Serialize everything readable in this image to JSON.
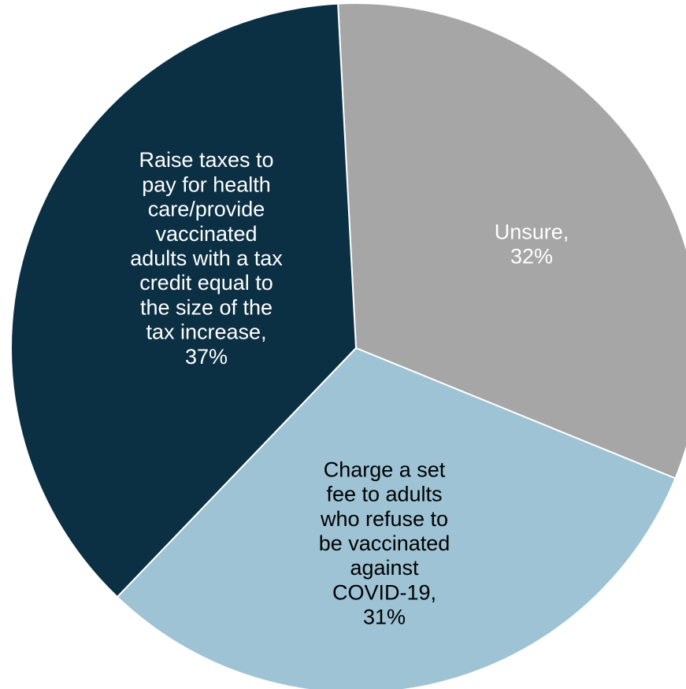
{
  "chart_data": {
    "type": "pie",
    "title": "",
    "start_angle_deg": -3,
    "slices": [
      {
        "name": "Unsure",
        "value": 32,
        "label_lines": [
          "Unsure,",
          "32%"
        ],
        "color": "#A6A6A6",
        "label_color": "#FFFFFF"
      },
      {
        "name": "Charge a set fee to adults who refuse to be vaccinated against COVID-19",
        "value": 31,
        "label_lines": [
          "Charge a set",
          "fee to adults",
          "who refuse to",
          "be vaccinated",
          "against",
          "COVID-19,",
          "31%"
        ],
        "color": "#9DC3D4",
        "label_color": "#000000"
      },
      {
        "name": "Raise taxes to pay for health care/provide vaccinated adults with a tax credit equal to the size of the tax increase",
        "value": 37,
        "label_lines": [
          "Raise taxes to",
          "pay for health",
          "care/provide",
          "vaccinated",
          "adults with a tax",
          "credit equal to",
          "the size of the",
          "tax increase,",
          "37%"
        ],
        "color": "#0B2F43",
        "label_color": "#FFFFFF"
      }
    ]
  }
}
